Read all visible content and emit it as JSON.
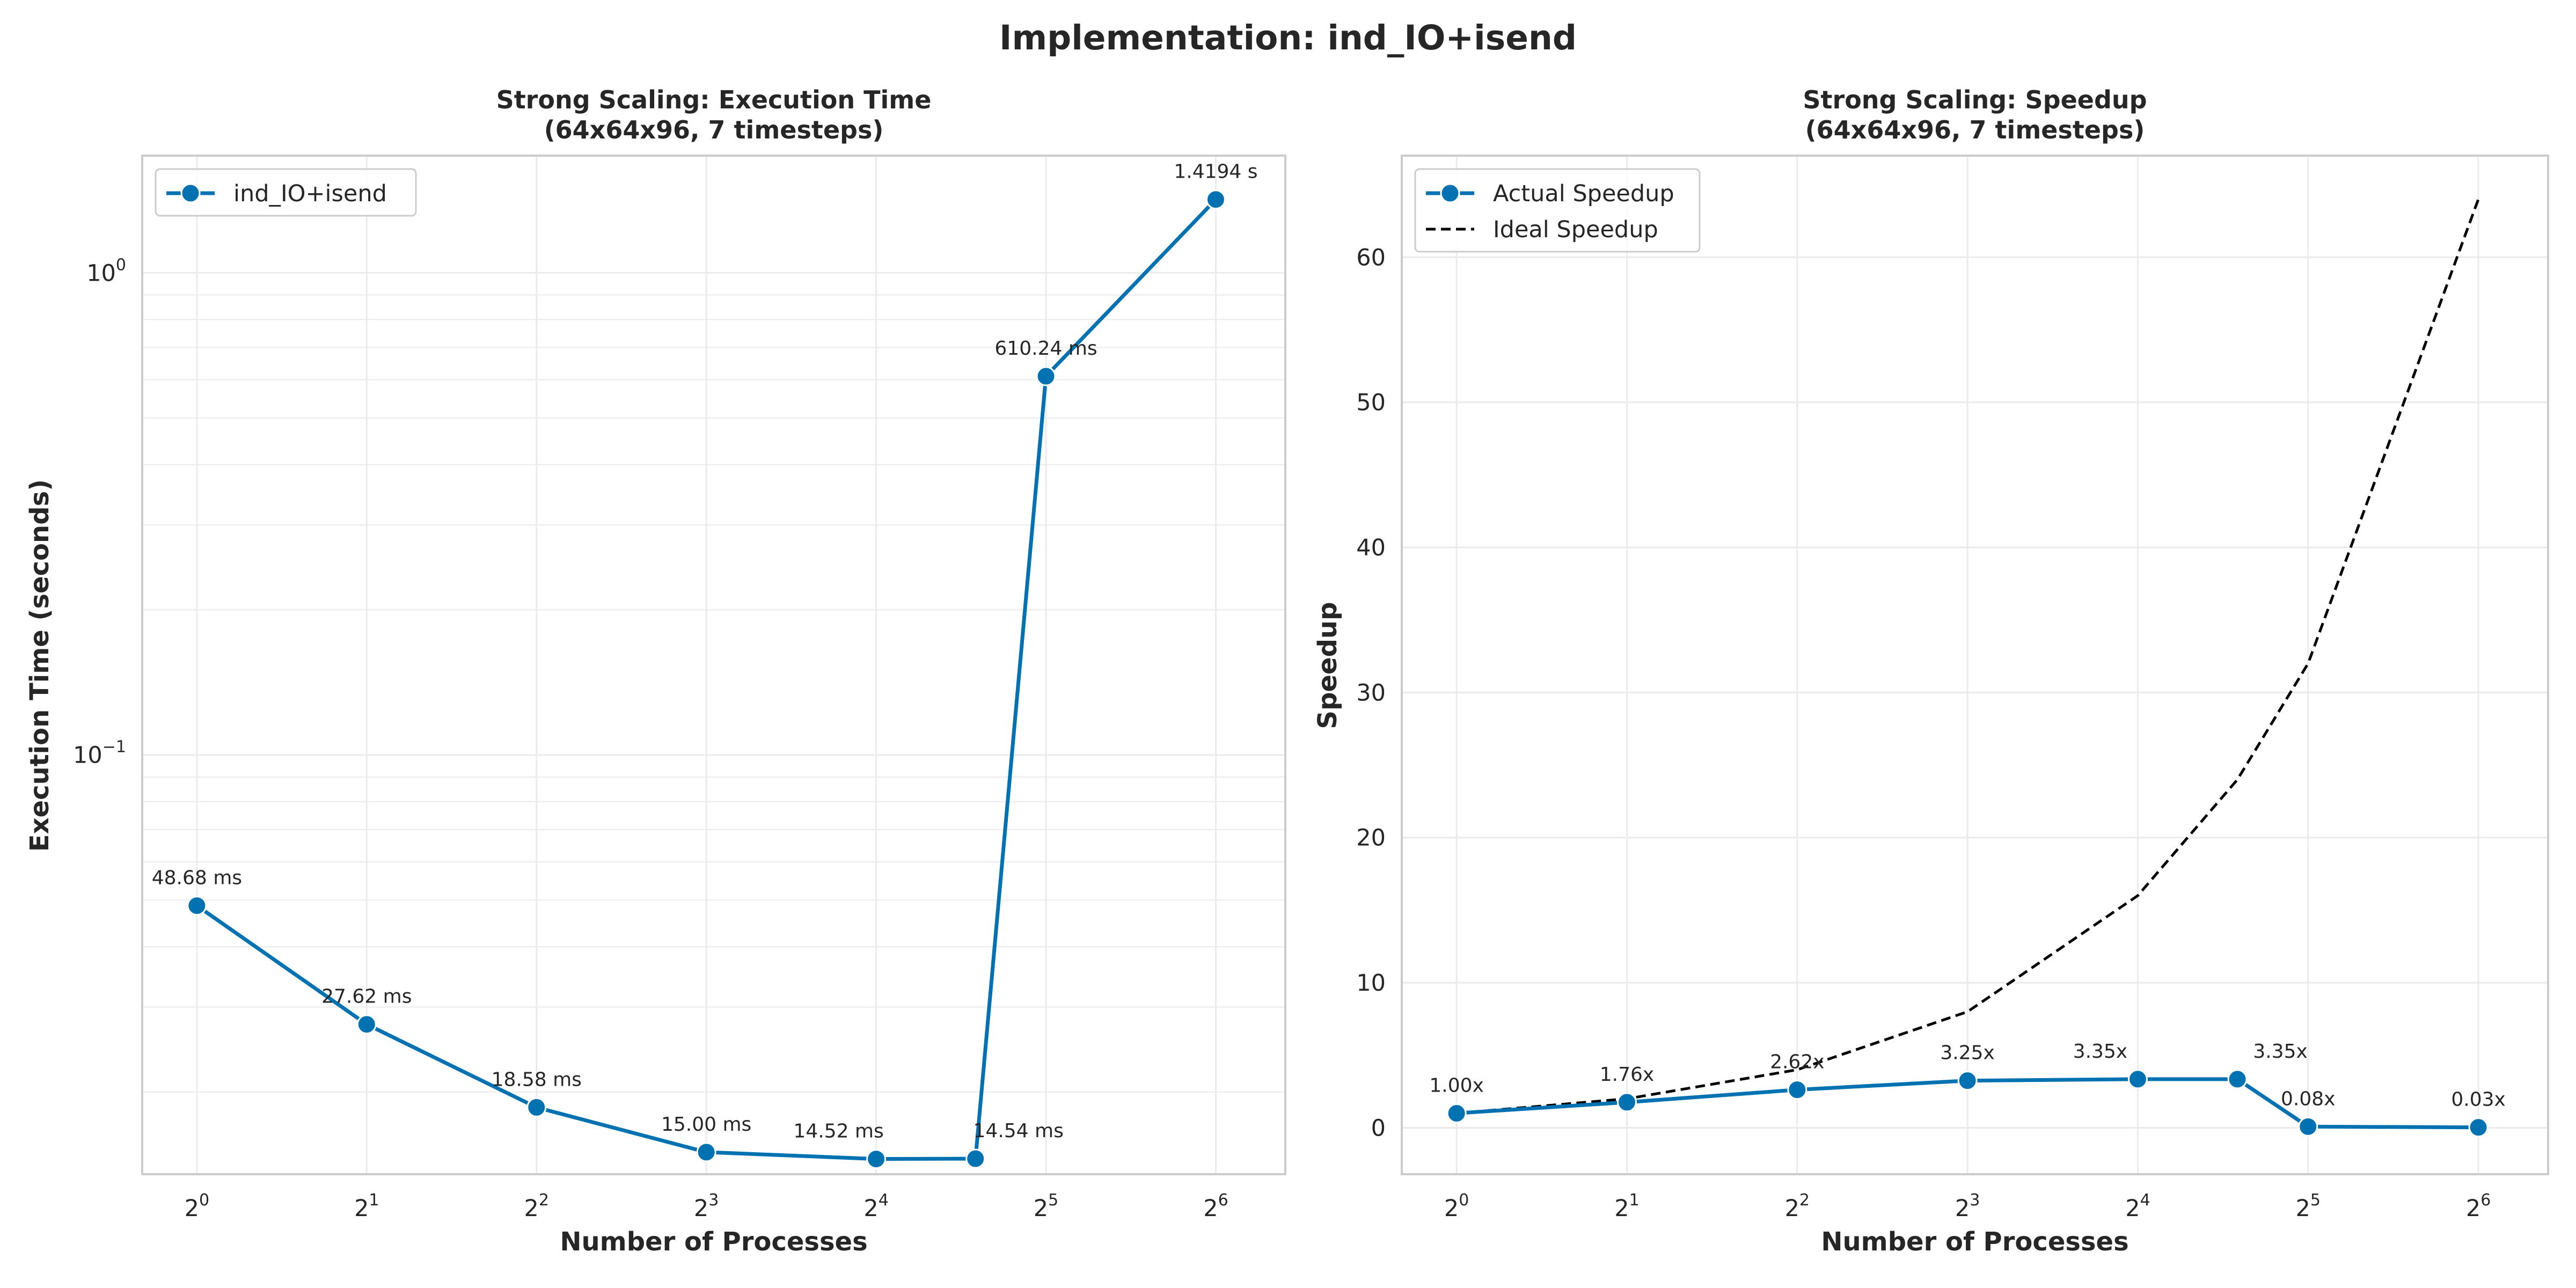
{
  "figure": {
    "suptitle": "Implementation: ind_IO+isend"
  },
  "colors": {
    "actual": "#0072b2",
    "ideal": "#000000",
    "grid": "#ebebeb",
    "frame": "#cccccc"
  },
  "chart_data": [
    {
      "type": "line",
      "title": "Strong Scaling: Execution Time",
      "subtitle": "(64x64x96, 7 timesteps)",
      "xlabel": "Number of Processes",
      "ylabel": "Execution Time (seconds)",
      "x_scale": "log2",
      "y_scale": "log10",
      "xlim": [
        0.8,
        85
      ],
      "ylim": [
        0.0135,
        1.75
      ],
      "x_ticks": [
        {
          "base": "2",
          "exp": "0",
          "value": 1
        },
        {
          "base": "2",
          "exp": "1",
          "value": 2
        },
        {
          "base": "2",
          "exp": "2",
          "value": 4
        },
        {
          "base": "2",
          "exp": "3",
          "value": 8
        },
        {
          "base": "2",
          "exp": "4",
          "value": 16
        },
        {
          "base": "2",
          "exp": "5",
          "value": 32
        },
        {
          "base": "2",
          "exp": "6",
          "value": 64
        }
      ],
      "y_ticks": [
        {
          "base": "10",
          "exp": "−1",
          "value": 0.1
        },
        {
          "base": "10",
          "exp": "0",
          "value": 1
        }
      ],
      "grid": true,
      "legend_position": "upper-left",
      "series": [
        {
          "name": "ind_IO+isend",
          "style": "solid-marker",
          "color": "#0072b2",
          "x": [
            1,
            2,
            4,
            8,
            16,
            24,
            32,
            64
          ],
          "y": [
            0.04868,
            0.02762,
            0.01858,
            0.015,
            0.01452,
            0.01454,
            0.61024,
            1.4194
          ],
          "labels": [
            "48.68 ms",
            "27.62 ms",
            "18.58 ms",
            "15.00 ms",
            "14.52 ms",
            "14.54 ms",
            "610.24 ms",
            "1.4194 s"
          ]
        }
      ]
    },
    {
      "type": "line",
      "title": "Strong Scaling: Speedup",
      "subtitle": "(64x64x96, 7 timesteps)",
      "xlabel": "Number of Processes",
      "ylabel": "Speedup",
      "x_scale": "log2",
      "y_scale": "linear",
      "xlim": [
        0.8,
        85
      ],
      "ylim": [
        -3.2,
        67
      ],
      "x_ticks": [
        {
          "base": "2",
          "exp": "0",
          "value": 1
        },
        {
          "base": "2",
          "exp": "1",
          "value": 2
        },
        {
          "base": "2",
          "exp": "2",
          "value": 4
        },
        {
          "base": "2",
          "exp": "3",
          "value": 8
        },
        {
          "base": "2",
          "exp": "4",
          "value": 16
        },
        {
          "base": "2",
          "exp": "5",
          "value": 32
        },
        {
          "base": "2",
          "exp": "6",
          "value": 64
        }
      ],
      "y_ticks": [
        {
          "label": "0",
          "value": 0
        },
        {
          "label": "10",
          "value": 10
        },
        {
          "label": "20",
          "value": 20
        },
        {
          "label": "30",
          "value": 30
        },
        {
          "label": "40",
          "value": 40
        },
        {
          "label": "50",
          "value": 50
        },
        {
          "label": "60",
          "value": 60
        }
      ],
      "grid": true,
      "legend_position": "upper-left",
      "series": [
        {
          "name": "Actual Speedup",
          "style": "solid-marker",
          "color": "#0072b2",
          "x": [
            1,
            2,
            4,
            8,
            16,
            24,
            32,
            64
          ],
          "y": [
            1.0,
            1.76,
            2.62,
            3.25,
            3.35,
            3.35,
            0.08,
            0.03
          ],
          "labels": [
            "1.00x",
            "1.76x",
            "2.62x",
            "3.25x",
            "3.35x",
            "3.35x",
            "0.08x",
            "0.03x"
          ]
        },
        {
          "name": "Ideal Speedup",
          "style": "dashed",
          "color": "#000000",
          "x": [
            1,
            2,
            4,
            8,
            16,
            24,
            32,
            64
          ],
          "y": [
            1,
            2,
            4,
            8,
            16,
            24,
            32,
            64
          ],
          "labels": []
        }
      ]
    }
  ]
}
